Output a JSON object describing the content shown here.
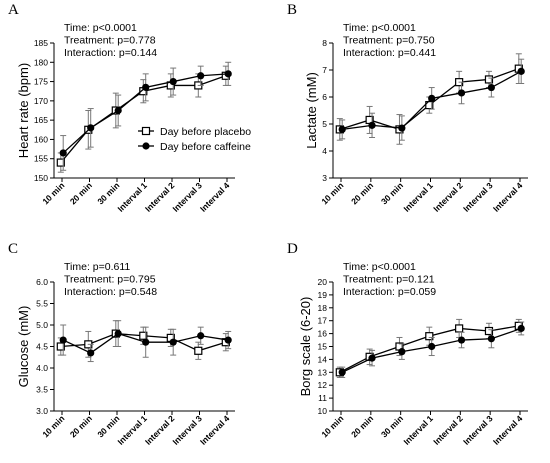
{
  "chart_data": [
    {
      "panel_letter": "A",
      "type": "line",
      "ylabel": "Heart rate (bpm)",
      "xlabel": "",
      "ylim": [
        150,
        185
      ],
      "yticks": [
        150,
        155,
        160,
        165,
        170,
        175,
        180,
        185
      ],
      "categories": [
        "10 min",
        "20 min",
        "30 min",
        "Interval 1",
        "Interval 2",
        "Interval 3",
        "Interval 4"
      ],
      "stats": [
        "Time: p<0.0001",
        "Treatment: p=0.778",
        "Interaction: p=0.144"
      ],
      "legend": {
        "placement": "center-right",
        "entries": [
          "Day before placebo",
          "Day before caffeine"
        ]
      },
      "series": [
        {
          "name": "Day before placebo",
          "marker": "open-square",
          "values": [
            154.0,
            162.5,
            167.5,
            172.5,
            174.0,
            174.0,
            176.5
          ],
          "err": [
            2.5,
            5.0,
            4.5,
            3.0,
            3.0,
            3.0,
            2.5
          ]
        },
        {
          "name": "Day before caffeine",
          "marker": "filled-circle",
          "values": [
            156.5,
            163.0,
            167.5,
            173.5,
            175.0,
            176.5,
            177.0
          ],
          "err": [
            4.5,
            5.0,
            4.0,
            3.5,
            3.5,
            2.5,
            3.0
          ]
        }
      ]
    },
    {
      "panel_letter": "B",
      "type": "line",
      "ylabel": "Lactate (mM)",
      "xlabel": "",
      "ylim": [
        3,
        8
      ],
      "yticks": [
        3,
        4,
        5,
        6,
        7,
        8
      ],
      "categories": [
        "10 min",
        "20 min",
        "30 min",
        "Interval 1",
        "Interval 2",
        "Interval 3",
        "Interval 4"
      ],
      "stats": [
        "Time: p<0.0001",
        "Treatment: p=0.750",
        "Interaction: p=0.441"
      ],
      "series": [
        {
          "name": "Day before placebo",
          "marker": "open-square",
          "values": [
            4.8,
            5.15,
            4.8,
            5.7,
            6.55,
            6.65,
            7.05
          ],
          "err": [
            0.4,
            0.5,
            0.55,
            0.3,
            0.4,
            0.3,
            0.55
          ]
        },
        {
          "name": "Day before caffeine",
          "marker": "filled-circle",
          "values": [
            4.8,
            4.95,
            4.85,
            5.95,
            6.15,
            6.35,
            6.95
          ],
          "err": [
            0.35,
            0.45,
            0.45,
            0.4,
            0.4,
            0.35,
            0.45
          ]
        }
      ]
    },
    {
      "panel_letter": "C",
      "type": "line",
      "ylabel": "Glucose (mM)",
      "xlabel": "",
      "ylim": [
        3.0,
        6.0
      ],
      "yticks": [
        3.0,
        3.5,
        4.0,
        4.5,
        5.0,
        5.5,
        6.0
      ],
      "categories": [
        "10 min",
        "20 min",
        "30 min",
        "Interval 1",
        "Interval 2",
        "Interval 3",
        "Interval 4"
      ],
      "stats": [
        "Time: p=0.611",
        "Treatment: p=0.795",
        "Interaction: p=0.548"
      ],
      "series": [
        {
          "name": "Day before placebo",
          "marker": "open-square",
          "values": [
            4.5,
            4.55,
            4.8,
            4.75,
            4.7,
            4.4,
            4.6
          ],
          "err": [
            0.2,
            0.3,
            0.3,
            0.2,
            0.2,
            0.2,
            0.2
          ]
        },
        {
          "name": "Day before caffeine",
          "marker": "filled-circle",
          "values": [
            4.65,
            4.35,
            4.8,
            4.6,
            4.6,
            4.75,
            4.65
          ],
          "err": [
            0.35,
            0.2,
            0.3,
            0.35,
            0.3,
            0.2,
            0.2
          ]
        }
      ]
    },
    {
      "panel_letter": "D",
      "type": "line",
      "ylabel": "Borg scale (6-20)",
      "xlabel": "",
      "ylim": [
        10,
        20
      ],
      "yticks": [
        10,
        11,
        12,
        13,
        14,
        15,
        16,
        17,
        18,
        19,
        20
      ],
      "categories": [
        "10 min",
        "20 min",
        "30 min",
        "Interval 1",
        "Interval 2",
        "Interval 3",
        "Interval 4"
      ],
      "stats": [
        "Time: p<0.0001",
        "Treatment: p=0.121",
        "Interaction: p=0.059"
      ],
      "series": [
        {
          "name": "Day before placebo",
          "marker": "open-square",
          "values": [
            13.0,
            14.2,
            15.0,
            15.8,
            16.4,
            16.2,
            16.6
          ],
          "err": [
            0.4,
            0.6,
            0.7,
            0.7,
            0.7,
            0.6,
            0.5
          ]
        },
        {
          "name": "Day before caffeine",
          "marker": "filled-circle",
          "values": [
            13.0,
            14.1,
            14.6,
            15.0,
            15.5,
            15.6,
            16.4
          ],
          "err": [
            0.4,
            0.6,
            0.6,
            0.7,
            0.6,
            0.7,
            0.5
          ]
        }
      ]
    }
  ]
}
